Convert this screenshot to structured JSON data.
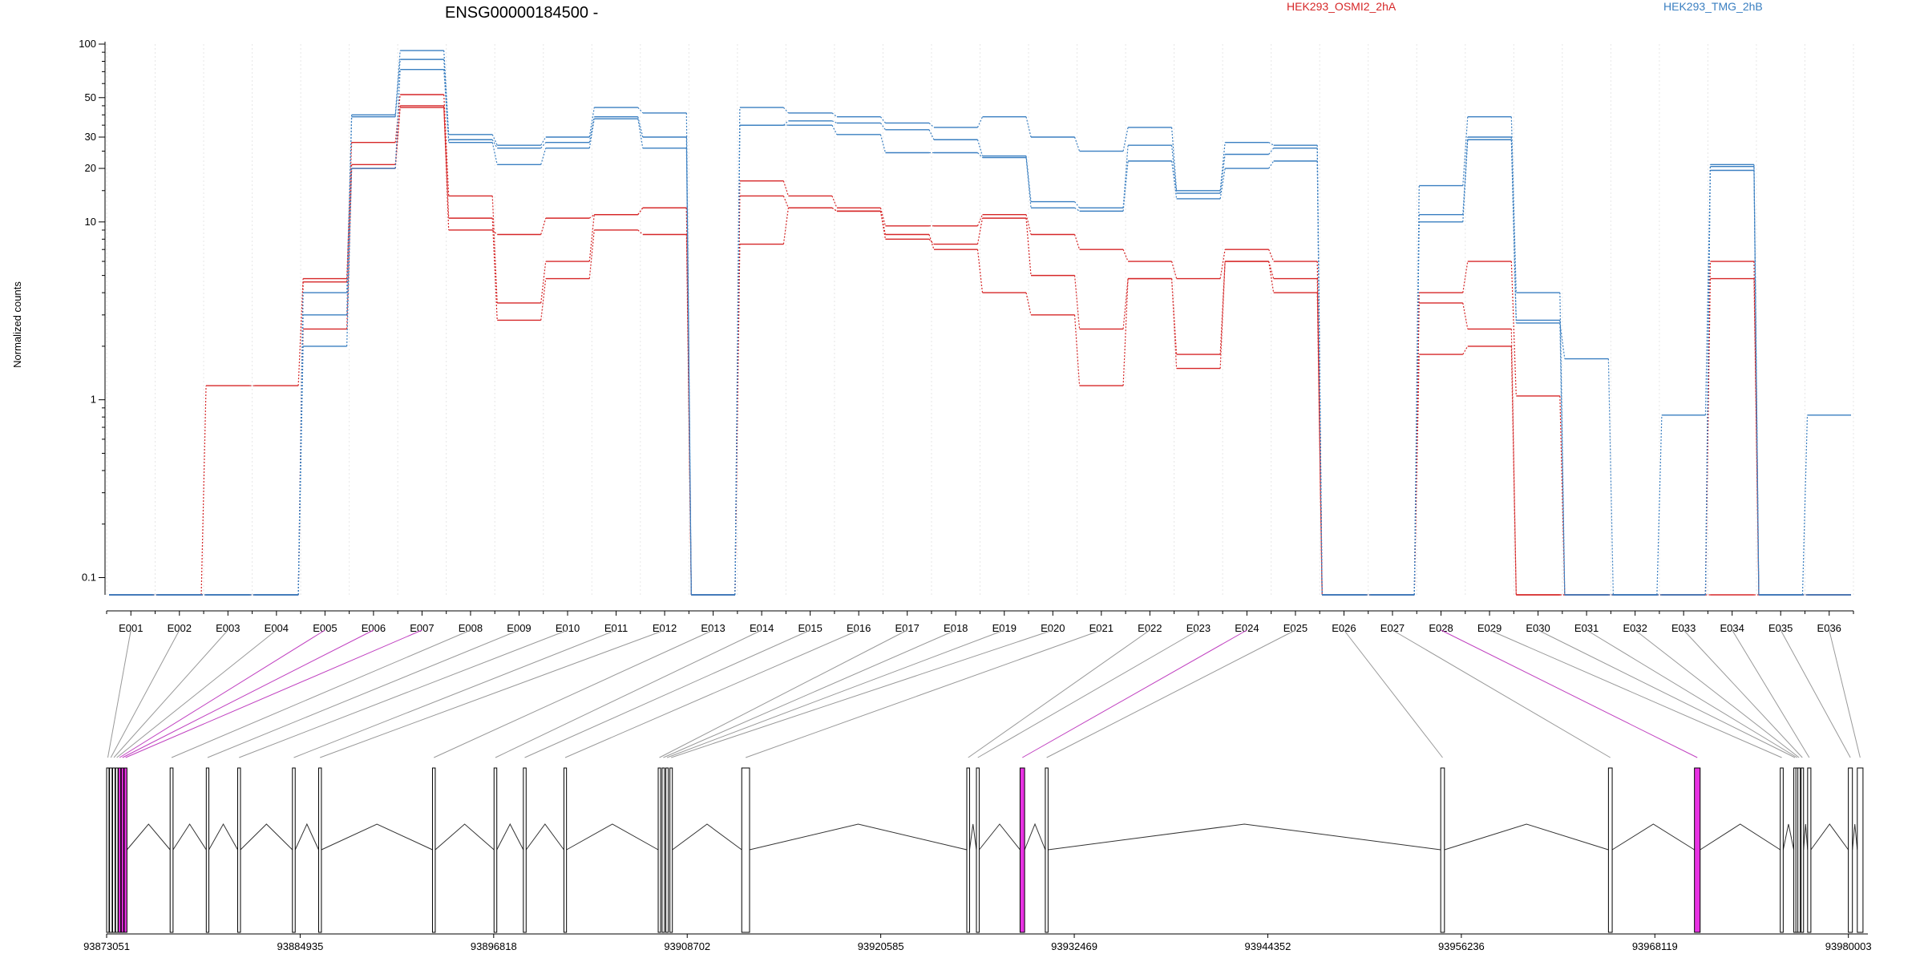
{
  "chart_data": {
    "type": "line",
    "title": "ENSG00000184500 -",
    "ylabel": "Normalized counts",
    "yscale": "log",
    "ylim": [
      0.08,
      100
    ],
    "yticks": [
      {
        "value": 100,
        "label": "100"
      },
      {
        "value": 50,
        "label": "50"
      },
      {
        "value": 30,
        "label": "30"
      },
      {
        "value": 20,
        "label": "20"
      },
      {
        "value": 10,
        "label": "10"
      },
      {
        "value": 1,
        "label": "1"
      },
      {
        "value": 0.1,
        "label": "0.1"
      }
    ],
    "categories": [
      "E001",
      "E002",
      "E003",
      "E004",
      "E005",
      "E006",
      "E007",
      "E008",
      "E009",
      "E010",
      "E011",
      "E012",
      "E013",
      "E014",
      "E015",
      "E016",
      "E017",
      "E018",
      "E019",
      "E020",
      "E021",
      "E022",
      "E023",
      "E024",
      "E025",
      "E026",
      "E027",
      "E028",
      "E029",
      "E030",
      "E031",
      "E032",
      "E033",
      "E034",
      "E035",
      "E036"
    ],
    "legend": [
      {
        "name": "HEK293_OSMI2_2hA",
        "color": "#d62728"
      },
      {
        "name": "HEK293_TMG_2hB",
        "color": "#3a7fc1"
      }
    ],
    "series": [
      {
        "group": "HEK293_OSMI2_2hA",
        "color": "#d62728",
        "values": [
          0.07,
          0.07,
          1.2,
          1.2,
          4.8,
          28,
          52,
          14,
          3.5,
          6,
          11,
          12,
          0.07,
          17,
          14,
          12,
          9.5,
          9.5,
          11,
          8.5,
          7,
          6,
          4.8,
          7,
          6,
          0.07,
          0.07,
          4,
          6,
          1.05,
          0.07,
          0.07,
          0.07,
          6,
          0.07,
          0.07
        ]
      },
      {
        "group": "HEK293_OSMI2_2hA",
        "color": "#d62728",
        "values": [
          0.07,
          0.07,
          0.07,
          0.07,
          4.6,
          21,
          45,
          10.5,
          2.8,
          4.8,
          9,
          8.5,
          0.07,
          14,
          12,
          11.5,
          8,
          7.5,
          10.5,
          5,
          2.5,
          4.8,
          1.5,
          6,
          4,
          0.07,
          0.07,
          3.5,
          2.5,
          0.07,
          0.07,
          0.07,
          0.07,
          4.8,
          0.07,
          0.07
        ]
      },
      {
        "group": "HEK293_OSMI2_2hA",
        "color": "#d62728",
        "values": [
          0.07,
          0.07,
          0.07,
          0.07,
          2.5,
          20,
          44,
          9,
          8.5,
          10.5,
          11,
          12,
          0.07,
          7.5,
          12,
          11.5,
          8.5,
          7,
          4,
          3,
          1.2,
          4.8,
          1.8,
          6,
          4.8,
          0.07,
          0.07,
          1.8,
          2,
          0.07,
          0.07,
          0.07,
          0.07,
          0.07,
          0.07,
          0.07
        ]
      },
      {
        "group": "HEK293_TMG_2hB",
        "color": "#3a7fc1",
        "values": [
          0.07,
          0.07,
          0.07,
          0.07,
          4,
          40,
          92,
          31,
          27,
          30,
          44,
          41,
          0.07,
          44,
          41,
          39,
          36,
          34,
          39,
          30,
          25,
          34,
          15,
          28,
          27,
          0.07,
          0.07,
          16,
          39,
          4,
          0.07,
          0.07,
          0.07,
          21,
          0.07,
          0.07
        ]
      },
      {
        "group": "HEK293_TMG_2hB",
        "color": "#3a7fc1",
        "values": [
          0.07,
          0.07,
          0.07,
          0.07,
          3,
          39,
          82,
          29,
          26,
          28,
          39,
          30,
          0.07,
          35,
          37,
          36,
          33,
          29,
          23.5,
          13,
          12,
          27,
          14.5,
          24,
          26,
          0.07,
          0.07,
          11,
          30,
          2.8,
          0.07,
          0.07,
          0.07,
          20.5,
          0.07,
          0.07
        ]
      },
      {
        "group": "HEK293_TMG_2hB",
        "color": "#3a7fc1",
        "values": [
          0.07,
          0.07,
          0.07,
          0.07,
          2,
          20,
          72,
          28,
          21,
          26,
          38,
          26,
          0.07,
          35,
          35,
          31,
          24.5,
          24.5,
          23,
          12,
          11.5,
          22,
          13.5,
          20,
          22,
          0.07,
          0.07,
          10,
          29,
          2.7,
          1.7,
          0.07,
          0.82,
          19.5,
          0.07,
          0.82
        ]
      }
    ],
    "genome_axis": {
      "ticks": [
        "93873051",
        "93884935",
        "93896818",
        "93908702",
        "93920585",
        "93932469",
        "93944352",
        "93956236",
        "93968119",
        "93980003"
      ],
      "range": [
        93873051,
        93981200
      ],
      "exons": [
        {
          "id": "E001",
          "start": 93873051,
          "end": 93873190,
          "highlight": false
        },
        {
          "id": "E002",
          "start": 93873230,
          "end": 93873390,
          "highlight": false
        },
        {
          "id": "E003",
          "start": 93873420,
          "end": 93873560,
          "highlight": false
        },
        {
          "id": "E004",
          "start": 93873600,
          "end": 93873740,
          "highlight": false
        },
        {
          "id": "E005",
          "start": 93873770,
          "end": 93873920,
          "highlight": true
        },
        {
          "id": "E006",
          "start": 93873950,
          "end": 93874100,
          "highlight": true
        },
        {
          "id": "E007",
          "start": 93874130,
          "end": 93874300,
          "highlight": true
        },
        {
          "id": "E008",
          "start": 93876950,
          "end": 93877130,
          "highlight": false
        },
        {
          "id": "E009",
          "start": 93879170,
          "end": 93879330,
          "highlight": false
        },
        {
          "id": "E010",
          "start": 93881100,
          "end": 93881270,
          "highlight": false
        },
        {
          "id": "E011",
          "start": 93884460,
          "end": 93884630,
          "highlight": false
        },
        {
          "id": "E012",
          "start": 93886070,
          "end": 93886240,
          "highlight": false
        },
        {
          "id": "E013",
          "start": 93893060,
          "end": 93893230,
          "highlight": false
        },
        {
          "id": "E014",
          "start": 93896840,
          "end": 93897010,
          "highlight": false
        },
        {
          "id": "E015",
          "start": 93898640,
          "end": 93898810,
          "highlight": false
        },
        {
          "id": "E016",
          "start": 93901130,
          "end": 93901290,
          "highlight": false
        },
        {
          "id": "E017",
          "start": 93906920,
          "end": 93907070,
          "highlight": false
        },
        {
          "id": "E018",
          "start": 93907160,
          "end": 93907310,
          "highlight": false
        },
        {
          "id": "E019",
          "start": 93907390,
          "end": 93907540,
          "highlight": false
        },
        {
          "id": "E020",
          "start": 93907640,
          "end": 93907790,
          "highlight": false
        },
        {
          "id": "E021",
          "start": 93912050,
          "end": 93912530,
          "highlight": false
        },
        {
          "id": "E022",
          "start": 93925870,
          "end": 93926040,
          "highlight": false
        },
        {
          "id": "E023",
          "start": 93926460,
          "end": 93926630,
          "highlight": false
        },
        {
          "id": "E024",
          "start": 93929140,
          "end": 93929420,
          "highlight": true
        },
        {
          "id": "E025",
          "start": 93930690,
          "end": 93930860,
          "highlight": false
        },
        {
          "id": "E026",
          "start": 93954970,
          "end": 93955200,
          "highlight": false
        },
        {
          "id": "E027",
          "start": 93965270,
          "end": 93965500,
          "highlight": false
        },
        {
          "id": "E028",
          "start": 93970550,
          "end": 93970900,
          "highlight": true
        },
        {
          "id": "E029",
          "start": 93975820,
          "end": 93976000,
          "highlight": false
        },
        {
          "id": "E030",
          "start": 93976650,
          "end": 93976760,
          "highlight": false
        },
        {
          "id": "E031",
          "start": 93976780,
          "end": 93976900,
          "highlight": false
        },
        {
          "id": "E032",
          "start": 93976900,
          "end": 93977050,
          "highlight": false
        },
        {
          "id": "E033",
          "start": 93977100,
          "end": 93977250,
          "highlight": false
        },
        {
          "id": "E034",
          "start": 93977500,
          "end": 93977700,
          "highlight": false
        },
        {
          "id": "E035",
          "start": 93980000,
          "end": 93980250,
          "highlight": false
        },
        {
          "id": "E036",
          "start": 93980550,
          "end": 93980900,
          "highlight": false
        }
      ],
      "highlight_color": "#e832e3"
    }
  }
}
